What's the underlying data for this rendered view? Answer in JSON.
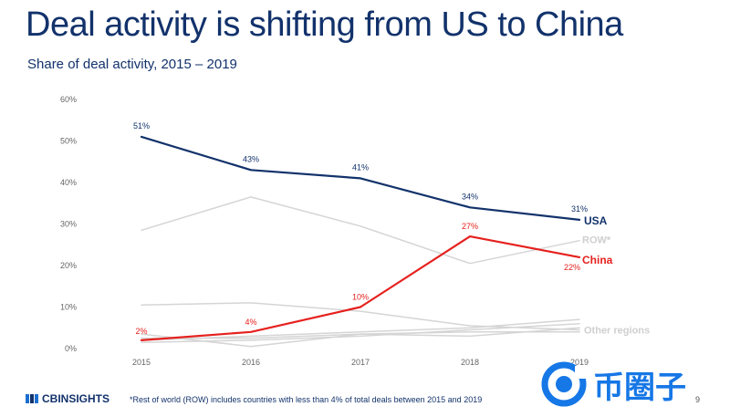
{
  "header": {
    "title": "Deal activity is shifting from US to China",
    "subtitle": "Share of deal activity, 2015 – 2019"
  },
  "footer": {
    "brand": "CBINSIGHTS",
    "footnote": "*Rest of world (ROW) includes countries with less than 4% of total deals between 2015 and 2019",
    "page_number": "9",
    "watermark": "币圈子"
  },
  "colors": {
    "usa": "#12326b",
    "china": "#e5211e",
    "grey": "#d5d5d5",
    "axis_text": "#666666"
  },
  "chart_data": {
    "type": "line",
    "title": "Share of deal activity, 2015 – 2019",
    "x": [
      "2015",
      "2016",
      "2017",
      "2018",
      "2019"
    ],
    "ylim": [
      0,
      60
    ],
    "yticks": [
      "0%",
      "10%",
      "20%",
      "30%",
      "40%",
      "50%",
      "60%"
    ],
    "series": [
      {
        "name": "USA",
        "key": "usa",
        "values": [
          51,
          43,
          41,
          34,
          31
        ],
        "labels": [
          "51%",
          "43%",
          "41%",
          "34%",
          "31%"
        ],
        "highlight": true
      },
      {
        "name": "China",
        "key": "china",
        "values": [
          2,
          4,
          10,
          27,
          22
        ],
        "labels": [
          "2%",
          "4%",
          "10%",
          "27%",
          "22%"
        ],
        "highlight": true
      },
      {
        "name": "ROW*",
        "key": "grey",
        "values": [
          28.5,
          36.5,
          29.5,
          20.5,
          26
        ],
        "labels": [],
        "highlight": false
      },
      {
        "name": "Other regions",
        "key": "grey",
        "values": [
          10.5,
          11,
          9,
          5.5,
          4.5
        ],
        "labels": [],
        "highlight": false
      },
      {
        "name": "Other regions 2",
        "key": "grey",
        "values": [
          3.5,
          0.5,
          3.5,
          3,
          5
        ],
        "labels": [],
        "highlight": false
      },
      {
        "name": "Other regions 3",
        "key": "grey",
        "values": [
          2,
          3,
          4,
          5,
          7
        ],
        "labels": [],
        "highlight": false
      },
      {
        "name": "Other regions 4",
        "key": "grey",
        "values": [
          1.5,
          2,
          3,
          4.5,
          6
        ],
        "labels": [],
        "highlight": false
      },
      {
        "name": "Other regions 5",
        "key": "grey",
        "values": [
          2.5,
          2.5,
          3.5,
          4,
          4
        ],
        "labels": [],
        "highlight": false
      }
    ],
    "end_labels": {
      "usa": "USA",
      "row": "ROW*",
      "china": "China",
      "other": "Other regions"
    }
  }
}
